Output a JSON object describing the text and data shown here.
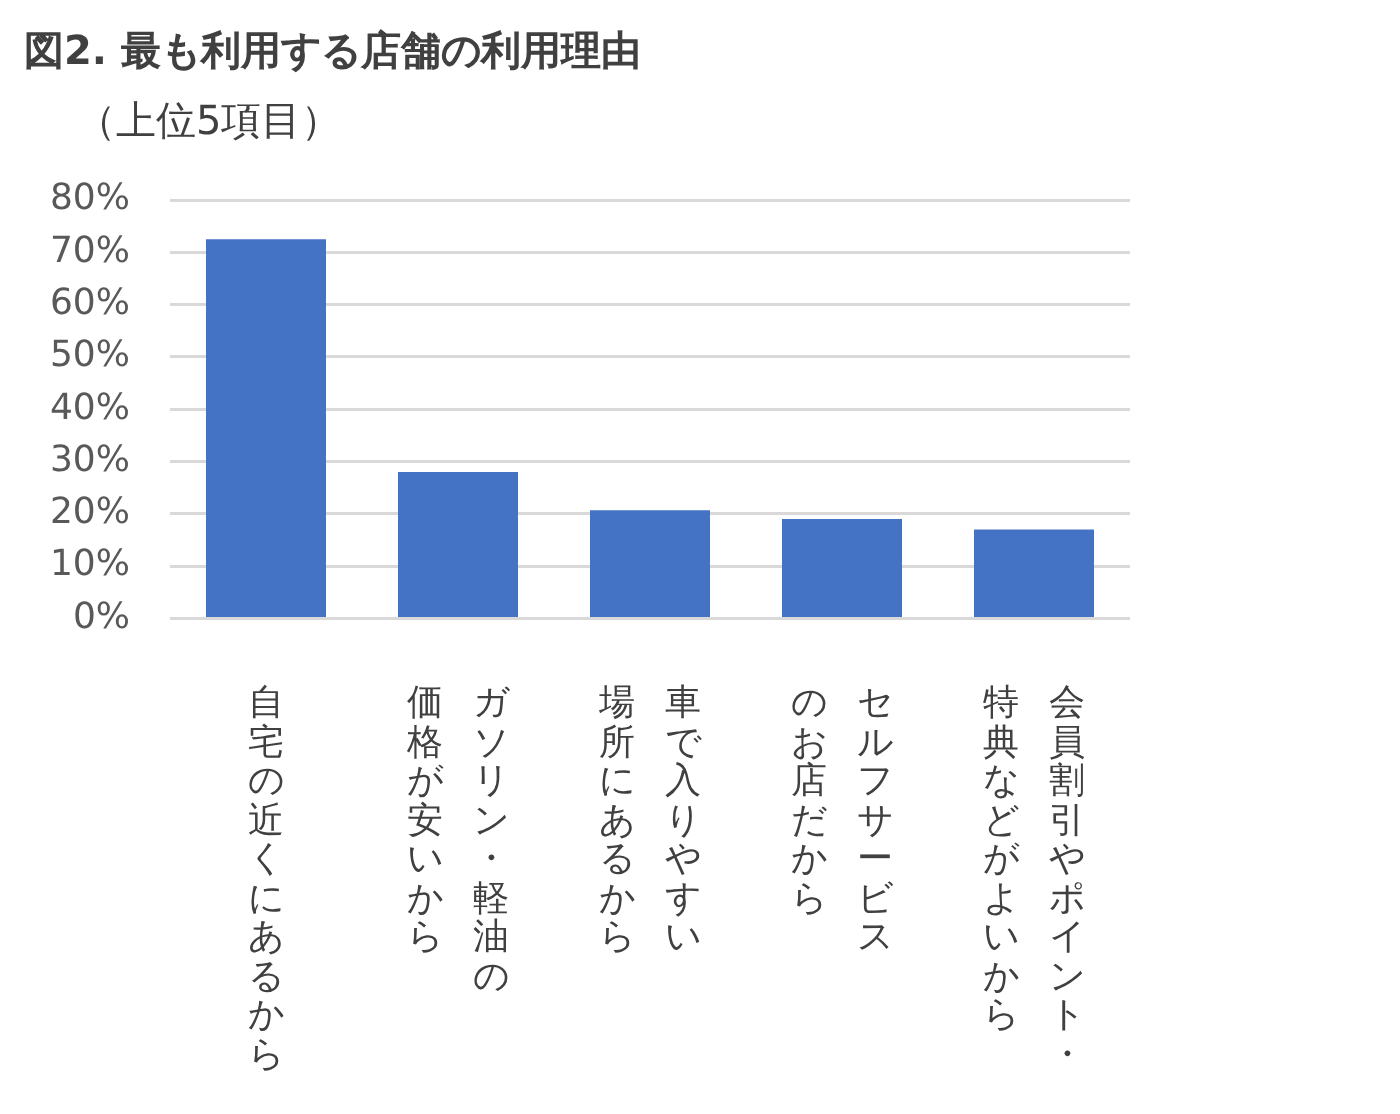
{
  "chart_data": {
    "type": "bar",
    "title": "図2. 最も利用する店舗の利用理由",
    "subtitle": "（上位5項目）",
    "categories": [
      "自宅の近くにあるから",
      "ガソリン・軽油の価格が安いから",
      "車で入りやすい場所にあるから",
      "セルフサービスのお店だから",
      "会員割引やポイント・特典などがよいから"
    ],
    "values": [
      72.5,
      28,
      20.7,
      19,
      17
    ],
    "color": "#4472c4",
    "ylim": [
      0,
      80
    ],
    "yticks": [
      {
        "value": 0,
        "label": "0%"
      },
      {
        "value": 10,
        "label": "10%"
      },
      {
        "value": 20,
        "label": "20%"
      },
      {
        "value": 30,
        "label": "30%"
      },
      {
        "value": 40,
        "label": "40%"
      },
      {
        "value": 50,
        "label": "50%"
      },
      {
        "value": 60,
        "label": "60%"
      },
      {
        "value": 70,
        "label": "70%"
      },
      {
        "value": 80,
        "label": "80%"
      }
    ],
    "grid": "y",
    "legend": false
  }
}
